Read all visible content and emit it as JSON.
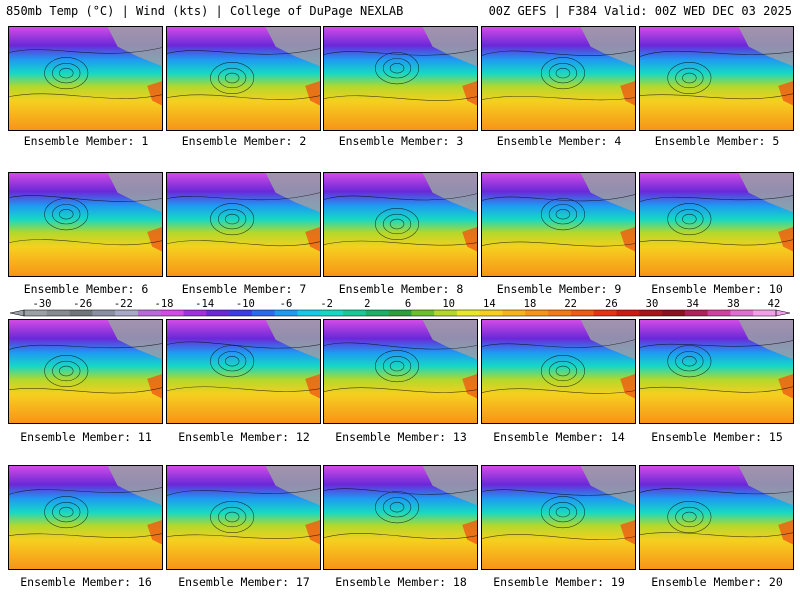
{
  "header": {
    "left": "850mb Temp (°C) | Wind (kts) | College of DuPage NEXLAB",
    "right": "00Z GEFS | F384 Valid: 00Z WED DEC 03 2025"
  },
  "members": [
    "Ensemble Member: 1",
    "Ensemble Member: 2",
    "Ensemble Member: 3",
    "Ensemble Member: 4",
    "Ensemble Member: 5",
    "Ensemble Member: 6",
    "Ensemble Member: 7",
    "Ensemble Member: 8",
    "Ensemble Member: 9",
    "Ensemble Member: 10",
    "Ensemble Member: 11",
    "Ensemble Member: 12",
    "Ensemble Member: 13",
    "Ensemble Member: 14",
    "Ensemble Member: 15",
    "Ensemble Member: 16",
    "Ensemble Member: 17",
    "Ensemble Member: 18",
    "Ensemble Member: 19",
    "Ensemble Member: 20"
  ],
  "colorbar": {
    "ticks": [
      "-30",
      "-26",
      "-22",
      "-18",
      "-14",
      "-10",
      "-6",
      "-2",
      "2",
      "6",
      "10",
      "14",
      "18",
      "22",
      "26",
      "30",
      "34",
      "38",
      "42"
    ],
    "colors": [
      "#9aa0a6",
      "#858b91",
      "#6f757b",
      "#8a8fa3",
      "#a8a8c8",
      "#b86ad6",
      "#d24be6",
      "#a030e0",
      "#6a28d8",
      "#3c3ce6",
      "#2a6af0",
      "#1e9bf2",
      "#18c8e8",
      "#17d8c4",
      "#19c896",
      "#1cb066",
      "#2e9e3c",
      "#6cbf2a",
      "#b4d82a",
      "#e8e82a",
      "#f5d020",
      "#f7b21c",
      "#f79418",
      "#f47a16",
      "#ef5a14",
      "#e63212",
      "#cc1a14",
      "#a81418",
      "#8c1020",
      "#b0205a",
      "#d040a0",
      "#e070d0",
      "#f0a0e8"
    ]
  },
  "chart_data": {
    "type": "heatmap",
    "title": "850mb Temp (°C) | Wind (kts)",
    "source": "College of DuPage NEXLAB",
    "run": "00Z GEFS | F384 Valid: 00Z WED DEC 03 2025",
    "scale_min": -30,
    "scale_max": 42
  }
}
